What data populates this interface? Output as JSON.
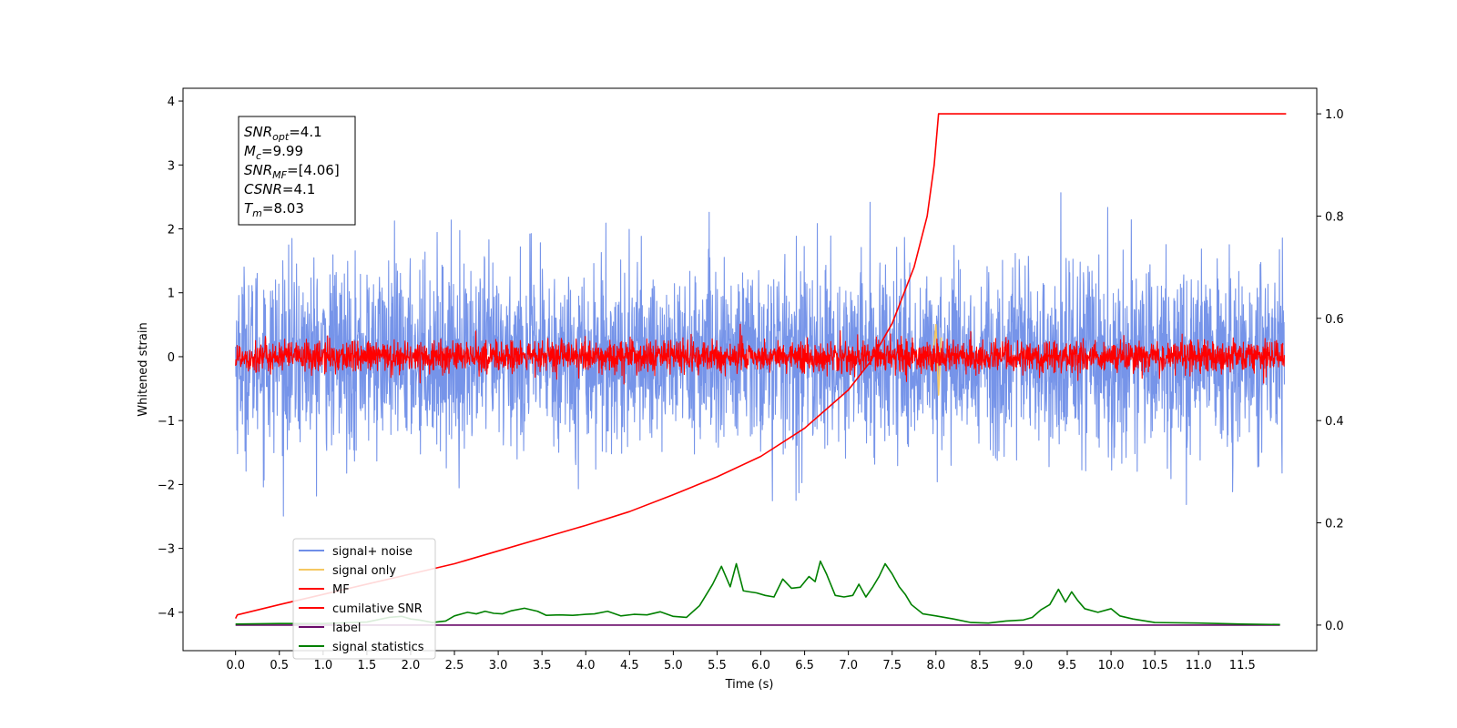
{
  "chart_data": {
    "type": "line",
    "xlabel": "Time (s)",
    "ylabel": "Whitened strain",
    "xlim": [
      -0.6,
      12.35
    ],
    "ylim": [
      -4.6,
      4.2
    ],
    "ylim_right": [
      -0.05,
      1.05
    ],
    "x_ticks": [
      "0.0",
      "0.5",
      "1.0",
      "1.5",
      "2.0",
      "2.5",
      "3.0",
      "3.5",
      "4.0",
      "4.5",
      "5.0",
      "5.5",
      "6.0",
      "6.5",
      "7.0",
      "7.5",
      "8.0",
      "8.5",
      "9.0",
      "9.5",
      "10.0",
      "10.5",
      "11.0",
      "11.5"
    ],
    "x_tick_values": [
      0,
      0.5,
      1,
      1.5,
      2,
      2.5,
      3,
      3.5,
      4,
      4.5,
      5,
      5.5,
      6,
      6.5,
      7,
      7.5,
      8,
      8.5,
      9,
      9.5,
      10,
      10.5,
      11,
      11.5
    ],
    "y_ticks": [
      4,
      3,
      2,
      1,
      0,
      -1,
      -2,
      -3,
      -4
    ],
    "y_tick_labels": [
      "4",
      "3",
      "2",
      "1",
      "0",
      "−1",
      "−2",
      "−3",
      "−4"
    ],
    "y_right_ticks": [
      1.0,
      0.8,
      0.6,
      0.4,
      0.2,
      0.0
    ],
    "y_right_tick_labels": [
      "1.0",
      "0.8",
      "0.6",
      "0.4",
      "0.2",
      "0.0"
    ],
    "legend": {
      "placement": "lower-left",
      "entries": [
        {
          "label": "signal+ noise",
          "color": "#6f8ee8"
        },
        {
          "label": "signal only",
          "color": "#f5c862"
        },
        {
          "label": "MF",
          "color": "#ff0000"
        },
        {
          "label": "cumilative SNR",
          "color": "#ff0000"
        },
        {
          "label": "label",
          "color": "#6a0a6a"
        },
        {
          "label": "signal statistics",
          "color": "#008000"
        }
      ]
    },
    "annotation": {
      "lines": [
        {
          "base": "SNR",
          "sub": "opt",
          "value": "=4.1"
        },
        {
          "base": "M",
          "sub": "c",
          "value": "=9.99"
        },
        {
          "base": "SNR",
          "sub": "MF",
          "value": "=[4.06]"
        },
        {
          "base": "CSNR",
          "sub": "",
          "value": "=4.1"
        },
        {
          "base": "T",
          "sub": "m",
          "value": "=8.03"
        }
      ]
    },
    "series": [
      {
        "name": "signal+ noise",
        "axis": "left",
        "color": "#6f8ee8",
        "style": "noise",
        "x_range": [
          0,
          11.98
        ],
        "amplitude": 1.15,
        "peak_max": 3.82,
        "peak_min": -3.82
      },
      {
        "name": "signal only",
        "axis": "left",
        "color": "#f5c862",
        "style": "chirp",
        "x": [
          7.9,
          7.95,
          8.0,
          8.03,
          8.06
        ],
        "y": [
          0.1,
          -0.2,
          0.5,
          -0.6,
          0.3
        ]
      },
      {
        "name": "MF",
        "axis": "left",
        "color": "#ff0000",
        "style": "noise",
        "x_range": [
          0,
          11.98
        ],
        "amplitude": 0.2,
        "peak_max": 1.0,
        "peak_min": -0.48
      },
      {
        "name": "cumilative SNR",
        "axis": "right",
        "color": "#ff0000",
        "x": [
          0.0,
          0.02,
          0.5,
          1.0,
          1.5,
          2.0,
          2.5,
          3.0,
          3.5,
          4.0,
          4.5,
          5.0,
          5.5,
          6.0,
          6.5,
          7.0,
          7.25,
          7.5,
          7.75,
          7.9,
          7.98,
          8.02,
          8.03,
          12.0
        ],
        "y": [
          0.013,
          0.02,
          0.04,
          0.06,
          0.08,
          0.1,
          0.12,
          0.145,
          0.17,
          0.195,
          0.222,
          0.255,
          0.29,
          0.33,
          0.385,
          0.46,
          0.515,
          0.59,
          0.7,
          0.8,
          0.9,
          0.98,
          1.0,
          1.0
        ]
      },
      {
        "name": "label",
        "axis": "right",
        "color": "#6a0a6a",
        "x": [
          0.0,
          11.93
        ],
        "y": [
          0.0,
          0.0
        ]
      },
      {
        "name": "signal statistics",
        "axis": "right",
        "color": "#008000",
        "x": [
          0.0,
          0.5,
          1.0,
          1.5,
          1.75,
          1.9,
          2.0,
          2.1,
          2.25,
          2.4,
          2.5,
          2.65,
          2.75,
          2.85,
          2.95,
          3.05,
          3.15,
          3.3,
          3.45,
          3.55,
          3.7,
          3.85,
          4.0,
          4.1,
          4.25,
          4.4,
          4.55,
          4.7,
          4.85,
          5.0,
          5.15,
          5.3,
          5.45,
          5.55,
          5.65,
          5.72,
          5.8,
          5.87,
          5.95,
          6.05,
          6.15,
          6.25,
          6.35,
          6.45,
          6.55,
          6.62,
          6.68,
          6.75,
          6.85,
          6.95,
          7.05,
          7.12,
          7.2,
          7.28,
          7.35,
          7.42,
          7.5,
          7.58,
          7.65,
          7.72,
          7.85,
          8.0,
          8.2,
          8.4,
          8.6,
          8.8,
          9.0,
          9.1,
          9.2,
          9.3,
          9.4,
          9.48,
          9.55,
          9.62,
          9.7,
          9.85,
          10.0,
          10.1,
          10.25,
          10.5,
          11.0,
          11.5,
          11.93
        ],
        "y": [
          0.002,
          0.003,
          0.003,
          0.006,
          0.015,
          0.017,
          0.012,
          0.01,
          0.005,
          0.008,
          0.018,
          0.025,
          0.022,
          0.027,
          0.023,
          0.022,
          0.028,
          0.033,
          0.027,
          0.019,
          0.02,
          0.019,
          0.021,
          0.022,
          0.027,
          0.018,
          0.021,
          0.02,
          0.026,
          0.017,
          0.015,
          0.038,
          0.08,
          0.115,
          0.075,
          0.12,
          0.067,
          0.065,
          0.063,
          0.058,
          0.055,
          0.09,
          0.072,
          0.074,
          0.095,
          0.085,
          0.125,
          0.1,
          0.058,
          0.055,
          0.058,
          0.08,
          0.055,
          0.075,
          0.095,
          0.12,
          0.1,
          0.075,
          0.06,
          0.04,
          0.022,
          0.018,
          0.012,
          0.005,
          0.004,
          0.008,
          0.01,
          0.015,
          0.03,
          0.04,
          0.07,
          0.045,
          0.065,
          0.048,
          0.032,
          0.025,
          0.032,
          0.018,
          0.012,
          0.005,
          0.004,
          0.002,
          0.001
        ]
      }
    ]
  }
}
